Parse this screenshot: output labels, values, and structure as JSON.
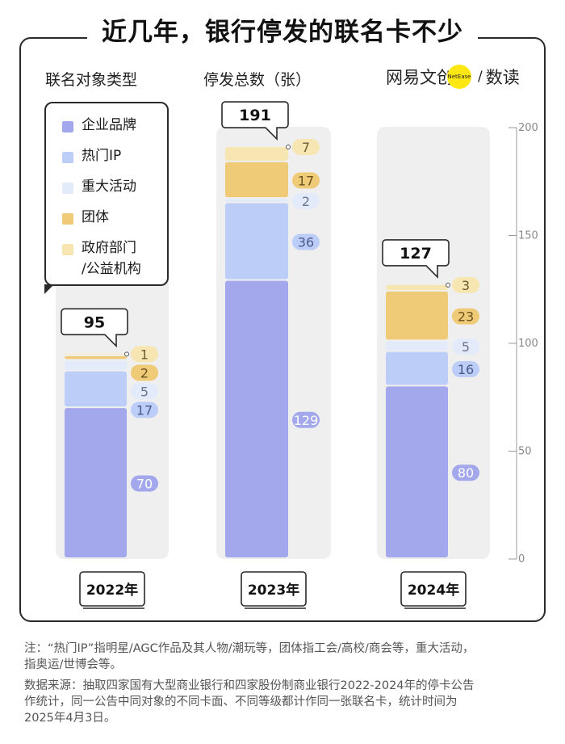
{
  "title": "近几年，银行停发的联名卡不少",
  "headers": {
    "type": "联名对象类型",
    "count": "停发总数（张）",
    "brand": "网易文创",
    "brand_badge": "NetEase",
    "brand_suffix": "数读"
  },
  "legend": [
    {
      "label": "企业品牌",
      "color": "#a3a8ec"
    },
    {
      "label": "热门IP",
      "color": "#bccdf8"
    },
    {
      "label": "重大活动",
      "color": "#e3ebfb"
    },
    {
      "label": "团体",
      "color": "#efca77"
    },
    {
      "label": "政府部门 /公益机构",
      "label_lines": [
        "政府部门",
        "/公益机构"
      ],
      "color": "#f7e6b2"
    }
  ],
  "chart_data": {
    "type": "bar",
    "stacked": true,
    "categories": [
      "2022年",
      "2023年",
      "2024年"
    ],
    "totals": [
      95,
      191,
      127
    ],
    "series": [
      {
        "name": "企业品牌",
        "values": [
          70,
          129,
          80
        ],
        "color": "#a3a8ec",
        "label_bg": "#a3a8ec",
        "label_color": "#ffffff"
      },
      {
        "name": "热门IP",
        "values": [
          17,
          36,
          16
        ],
        "color": "#bccdf8",
        "label_bg": "#bccdf8",
        "label_color": "#4a5a8a"
      },
      {
        "name": "重大活动",
        "values": [
          5,
          2,
          5
        ],
        "color": "#e3ebfb",
        "label_bg": "#e3ebfb",
        "label_color": "#6a7590"
      },
      {
        "name": "团体",
        "values": [
          2,
          17,
          23
        ],
        "color": "#efca77",
        "label_bg": "#efca77",
        "label_color": "#6b5320"
      },
      {
        "name": "政府部门/公益机构",
        "values": [
          1,
          7,
          3
        ],
        "color": "#f7e6b2",
        "label_bg": "#f7e6b2",
        "label_color": "#6b5a30"
      }
    ],
    "ylim": [
      0,
      200
    ],
    "yticks": [
      0,
      50,
      100,
      150,
      200
    ],
    "ytick_labels": [
      "0",
      "50",
      "100",
      "150",
      "200"
    ],
    "grid": false
  },
  "footnotes": [
    "注：“热门IP”指明星/AGC作品及其人物/潮玩等，团体指工会/高校/商会等，重大活动，",
    "指奥运/世博会等。",
    "数据来源：抽取四家国有大型商业银行和四家股份制商业银行2022-2024年的停卡公告",
    "作统计，同一公告中同对象的不同卡面、不同等级都计作同一张联名卡，统计时间为",
    "2025年4月3日。"
  ]
}
